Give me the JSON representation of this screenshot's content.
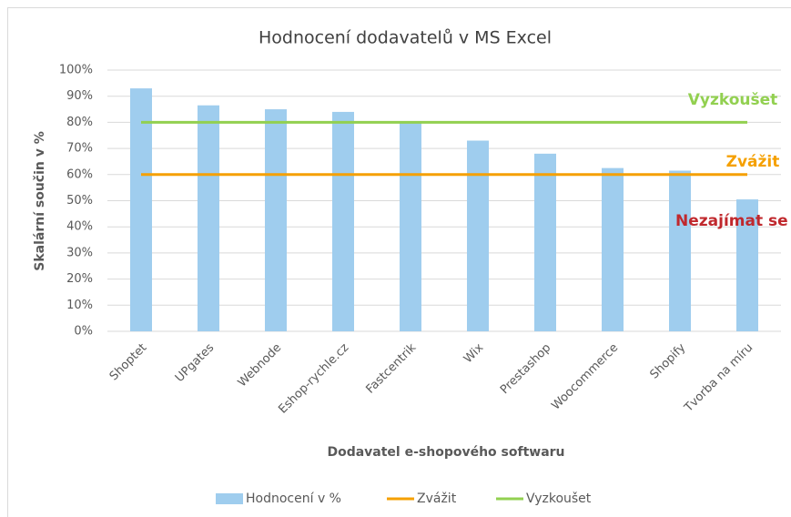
{
  "chart_data": {
    "type": "bar",
    "title": "Hodnocení dodavatelů v MS Excel",
    "x_label": "Dodavatel e-shopového softwaru",
    "y_label": "Skalární součin v %",
    "categories": [
      "Shoptet",
      "UPgates",
      "Webnode",
      "Eshop-rychle.cz",
      "Fastcentrik",
      "Wix",
      "Prestashop",
      "Woocommerce",
      "Shopify",
      "Tvorba na míru"
    ],
    "series": [
      {
        "name": "Hodnocení v %",
        "type": "bar",
        "color": "#9fcdee",
        "values": [
          93,
          86.5,
          85,
          84,
          80,
          73,
          68,
          62.5,
          61.5,
          50.5
        ]
      },
      {
        "name": "Zvážit",
        "type": "line",
        "color": "#f5a000",
        "values": [
          60,
          60,
          60,
          60,
          60,
          60,
          60,
          60,
          60,
          60
        ]
      },
      {
        "name": "Vyzkoušet",
        "type": "line",
        "color": "#92d050",
        "values": [
          80,
          80,
          80,
          80,
          80,
          80,
          80,
          80,
          80,
          80
        ]
      }
    ],
    "annotations": [
      {
        "text": "Vyzkoušet",
        "color": "#92d050"
      },
      {
        "text": "Zvážit",
        "color": "#f5a000"
      },
      {
        "text": "Nezajímat se",
        "color": "#c0282d"
      }
    ],
    "ylim": [
      0,
      100
    ],
    "yticks": [
      {
        "value": 0,
        "label": "0%"
      },
      {
        "value": 10,
        "label": "10%"
      },
      {
        "value": 20,
        "label": "20%"
      },
      {
        "value": 30,
        "label": "30%"
      },
      {
        "value": 40,
        "label": "40%"
      },
      {
        "value": 50,
        "label": "50%"
      },
      {
        "value": 60,
        "label": "60%"
      },
      {
        "value": 70,
        "label": "70%"
      },
      {
        "value": 80,
        "label": "80%"
      },
      {
        "value": 90,
        "label": "90%"
      },
      {
        "value": 100,
        "label": "100%"
      }
    ],
    "grid": true,
    "legend": "bottom"
  }
}
